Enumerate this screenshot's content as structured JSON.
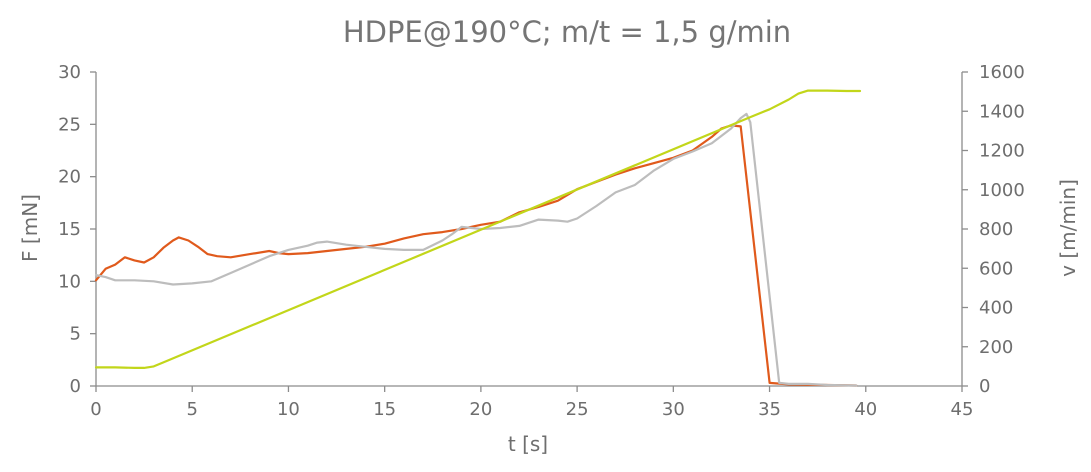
{
  "chart_data": {
    "type": "line",
    "title": "HDPE@190°C; m/t = 1,5 g/min",
    "xlabel": "t [s]",
    "ylabel_left": "F [mN]",
    "ylabel_right": "v [m/min]",
    "xlim": [
      0,
      45
    ],
    "ylim_left": [
      0,
      30
    ],
    "ylim_right": [
      0,
      1600
    ],
    "xticks": [
      "0",
      "5",
      "10",
      "15",
      "20",
      "25",
      "30",
      "35",
      "40",
      "45"
    ],
    "yticks_left": [
      "0",
      "5",
      "10",
      "15",
      "20",
      "25",
      "30"
    ],
    "yticks_right": [
      "0",
      "200",
      "400",
      "600",
      "800",
      "1000",
      "1200",
      "1400",
      "1600"
    ],
    "grid": false,
    "legend": "none",
    "series": [
      {
        "axis": "left",
        "color": "#e05a1c",
        "points": [
          [
            0,
            10.1
          ],
          [
            0.5,
            11.2
          ],
          [
            1,
            11.6
          ],
          [
            1.5,
            12.3
          ],
          [
            2,
            12.0
          ],
          [
            2.5,
            11.8
          ],
          [
            3,
            12.3
          ],
          [
            3.5,
            13.2
          ],
          [
            4,
            13.9
          ],
          [
            4.3,
            14.2
          ],
          [
            4.8,
            13.9
          ],
          [
            5.3,
            13.3
          ],
          [
            5.8,
            12.6
          ],
          [
            6.3,
            12.4
          ],
          [
            7,
            12.3
          ],
          [
            8,
            12.6
          ],
          [
            9,
            12.9
          ],
          [
            9.5,
            12.7
          ],
          [
            10,
            12.6
          ],
          [
            11,
            12.7
          ],
          [
            12,
            12.9
          ],
          [
            13,
            13.1
          ],
          [
            14,
            13.3
          ],
          [
            15,
            13.6
          ],
          [
            16,
            14.1
          ],
          [
            17,
            14.5
          ],
          [
            18,
            14.7
          ],
          [
            19,
            15.0
          ],
          [
            20,
            15.4
          ],
          [
            21,
            15.7
          ],
          [
            22,
            16.6
          ],
          [
            23,
            17.1
          ],
          [
            24,
            17.7
          ],
          [
            25,
            18.8
          ],
          [
            26,
            19.5
          ],
          [
            27,
            20.2
          ],
          [
            28,
            20.8
          ],
          [
            29,
            21.3
          ],
          [
            30,
            21.8
          ],
          [
            31,
            22.5
          ],
          [
            32,
            23.8
          ],
          [
            32.5,
            24.6
          ],
          [
            33,
            24.9
          ],
          [
            33.5,
            24.8
          ],
          [
            35,
            0.3
          ],
          [
            36,
            0.15
          ],
          [
            38,
            0.1
          ],
          [
            39.5,
            0.05
          ]
        ]
      },
      {
        "axis": "left",
        "color": "#bdbdbd",
        "points": [
          [
            0,
            10.6
          ],
          [
            0.5,
            10.4
          ],
          [
            1,
            10.1
          ],
          [
            2,
            10.1
          ],
          [
            3,
            10.0
          ],
          [
            4,
            9.7
          ],
          [
            5,
            9.8
          ],
          [
            6,
            10.0
          ],
          [
            6.5,
            10.4
          ],
          [
            7,
            10.8
          ],
          [
            8,
            11.6
          ],
          [
            9,
            12.4
          ],
          [
            10,
            13.0
          ],
          [
            11,
            13.4
          ],
          [
            11.5,
            13.7
          ],
          [
            12,
            13.8
          ],
          [
            13,
            13.5
          ],
          [
            14,
            13.3
          ],
          [
            15,
            13.1
          ],
          [
            16,
            13.0
          ],
          [
            17,
            13.0
          ],
          [
            18,
            13.9
          ],
          [
            18.5,
            14.5
          ],
          [
            19,
            15.2
          ],
          [
            20,
            15.0
          ],
          [
            21,
            15.1
          ],
          [
            22,
            15.3
          ],
          [
            23,
            15.9
          ],
          [
            24,
            15.8
          ],
          [
            24.5,
            15.7
          ],
          [
            25,
            16.0
          ],
          [
            26,
            17.2
          ],
          [
            27,
            18.5
          ],
          [
            28,
            19.2
          ],
          [
            29,
            20.6
          ],
          [
            30,
            21.7
          ],
          [
            31,
            22.4
          ],
          [
            32,
            23.2
          ],
          [
            33,
            24.6
          ],
          [
            33.5,
            25.6
          ],
          [
            33.8,
            26.0
          ],
          [
            34,
            25.2
          ],
          [
            35.5,
            0.3
          ],
          [
            36,
            0.2
          ],
          [
            37,
            0.2
          ],
          [
            38,
            0.1
          ],
          [
            39.5,
            0.05
          ]
        ]
      },
      {
        "axis": "right",
        "color": "#c2d61a",
        "points": [
          [
            0,
            95
          ],
          [
            1,
            95
          ],
          [
            2,
            92
          ],
          [
            2.5,
            92
          ],
          [
            3,
            100
          ],
          [
            3.5,
            120
          ],
          [
            34,
            1370
          ],
          [
            35,
            1410
          ],
          [
            36,
            1460
          ],
          [
            36.5,
            1490
          ],
          [
            37,
            1505
          ],
          [
            38,
            1505
          ],
          [
            39,
            1503
          ],
          [
            39.7,
            1503
          ]
        ]
      }
    ]
  }
}
